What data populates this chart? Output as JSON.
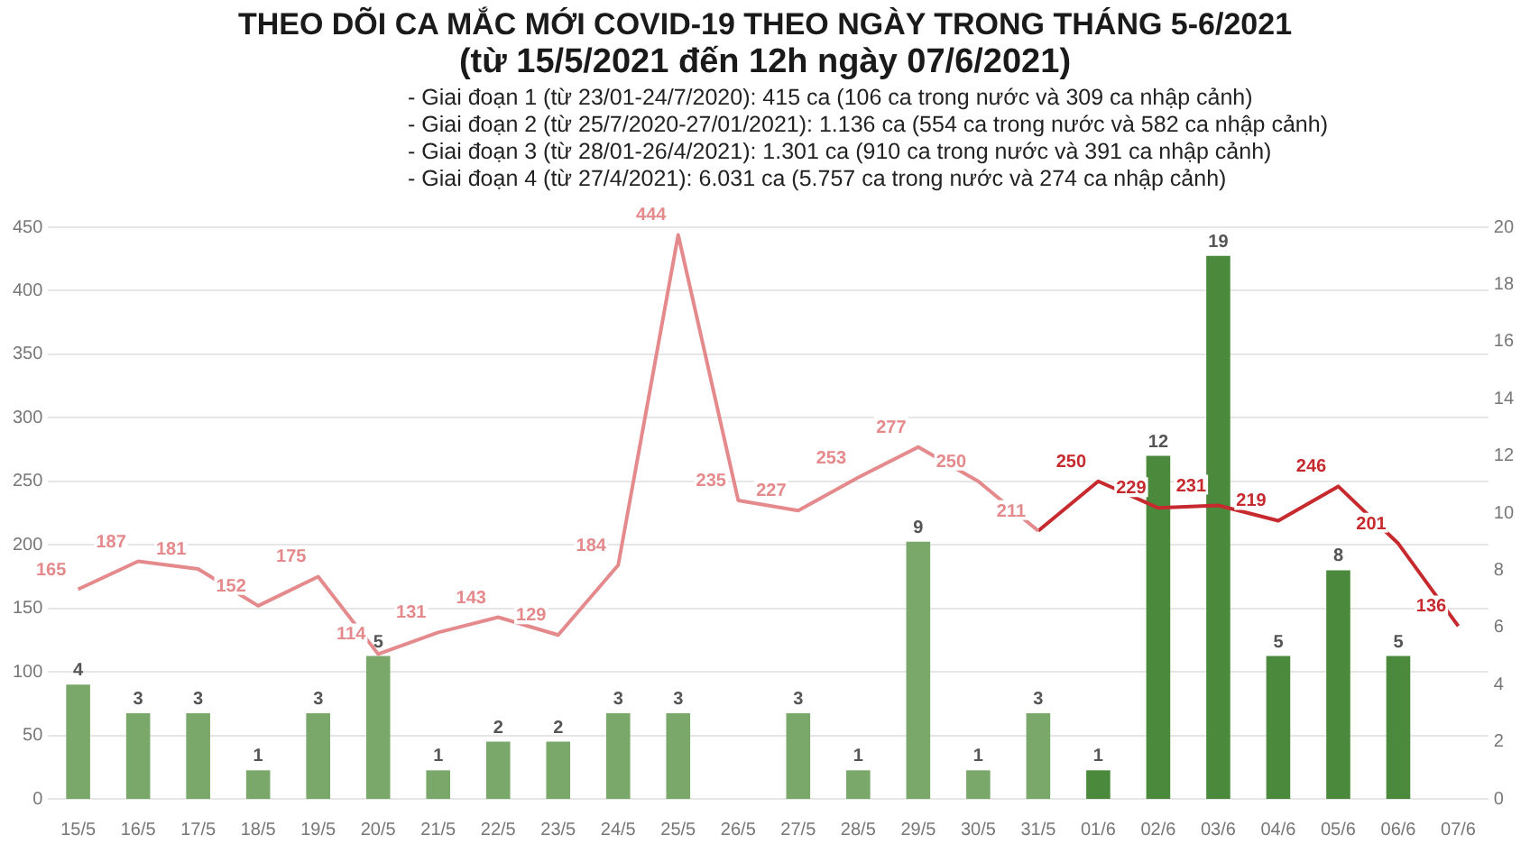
{
  "chart_data": {
    "type": "bar",
    "title": "THEO DÕI CA MẮC MỚI COVID-19 THEO NGÀY TRONG THÁNG 5-6/2021",
    "subtitle": "(từ 15/5/2021 đến 12h ngày 07/6/2021)",
    "annotations": [
      "- Giai đoạn 1 (từ 23/01-24/7/2020): 415 ca (106 ca trong nước và 309 ca nhập cảnh)",
      "- Giai đoạn 2 (từ 25/7/2020-27/01/2021): 1.136 ca (554 ca trong nước và 582 ca nhập cảnh)",
      "- Giai đoạn 3 (từ 28/01-26/4/2021): 1.301 ca (910 ca trong nước và 391 ca nhập cảnh)",
      "- Giai đoạn 4 (từ 27/4/2021): 6.031 ca (5.757 ca trong nước và 274 ca nhập cảnh)"
    ],
    "categories": [
      "15/5",
      "16/5",
      "17/5",
      "18/5",
      "19/5",
      "20/5",
      "21/5",
      "22/5",
      "23/5",
      "24/5",
      "25/5",
      "26/5",
      "27/5",
      "28/5",
      "29/5",
      "30/5",
      "31/5",
      "01/6",
      "02/6",
      "03/6",
      "04/6",
      "05/6",
      "06/6",
      "07/6"
    ],
    "series": [
      {
        "type": "line",
        "axis": "y",
        "color": "#e58a8c",
        "values": [
          165,
          187,
          181,
          152,
          175,
          114,
          131,
          143,
          129,
          184,
          444,
          235,
          227,
          253,
          277,
          250,
          211,
          null,
          null,
          null,
          null,
          null,
          null,
          null
        ]
      },
      {
        "type": "line",
        "axis": "y",
        "color": "#c62a2f",
        "values": [
          null,
          null,
          null,
          null,
          null,
          null,
          null,
          null,
          null,
          null,
          null,
          null,
          null,
          null,
          null,
          null,
          211,
          250,
          229,
          231,
          219,
          246,
          201,
          136
        ],
        "value_labels": [
          null,
          null,
          null,
          null,
          null,
          null,
          null,
          null,
          null,
          null,
          null,
          null,
          null,
          null,
          null,
          null,
          null,
          "250",
          "229",
          "231",
          "219",
          "246",
          "201",
          "136"
        ]
      },
      {
        "type": "bar",
        "axis": "y2",
        "colors": [
          "#7aa86a",
          "#7aa86a",
          "#7aa86a",
          "#7aa86a",
          "#7aa86a",
          "#7aa86a",
          "#7aa86a",
          "#7aa86a",
          "#7aa86a",
          "#7aa86a",
          "#7aa86a",
          "#7aa86a",
          "#7aa86a",
          "#7aa86a",
          "#7aa86a",
          "#7aa86a",
          "#7aa86a",
          "#4b8a3c",
          "#4b8a3c",
          "#4b8a3c",
          "#4b8a3c",
          "#4b8a3c",
          "#4b8a3c",
          "#4b8a3c"
        ],
        "values": [
          4,
          3,
          3,
          1,
          3,
          5,
          1,
          2,
          2,
          3,
          3,
          null,
          3,
          1,
          9,
          1,
          3,
          1,
          12,
          19,
          5,
          8,
          5,
          null
        ]
      }
    ],
    "ylim": [
      0,
      450
    ],
    "yticks": [
      0,
      50,
      100,
      150,
      200,
      250,
      300,
      350,
      400,
      450
    ],
    "y2lim": [
      0,
      20
    ],
    "y2ticks": [
      0,
      2,
      4,
      6,
      8,
      10,
      12,
      14,
      16,
      18,
      20
    ],
    "grid": "y",
    "legend": false,
    "marker": "none",
    "line_style": "solid",
    "data_labels": true
  }
}
